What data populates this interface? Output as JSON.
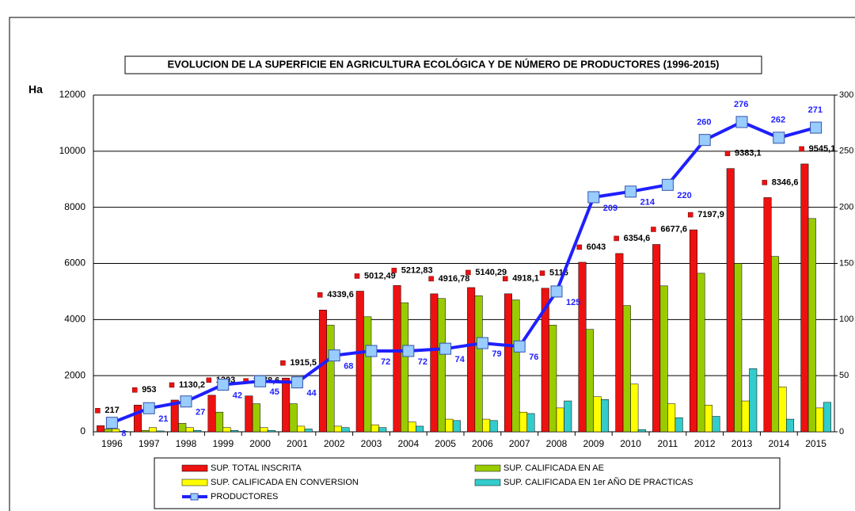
{
  "chart_data": {
    "type": "bar",
    "title": "EVOLUCION DE LA SUPERFICIE EN AGRICULTURA ECOLÓGICA Y DE NÚMERO DE PRODUCTORES  (1996-2015)",
    "ylabel": "Ha",
    "categories": [
      "1996",
      "1997",
      "1998",
      "1999",
      "2000",
      "2001",
      "2002",
      "2003",
      "2004",
      "2005",
      "2006",
      "2007",
      "2008",
      "2009",
      "2010",
      "2011",
      "2012",
      "2013",
      "2014",
      "2015"
    ],
    "series": [
      {
        "name": "SUP. TOTAL INSCRITA",
        "color": "#ee1111",
        "values": [
          217,
          953,
          1130.2,
          1303,
          1278.6,
          1915.5,
          4339.6,
          5012.49,
          5212.83,
          4916.78,
          5140.29,
          4918.1,
          5116,
          6043,
          6354.6,
          6677.6,
          7197.9,
          9383.1,
          8346.6,
          9545.1
        ],
        "value_labels": [
          "217",
          "953",
          "1130,2",
          "1303",
          "1278,6",
          "1915,5",
          "4339,6",
          "5012,49",
          "5212,83",
          "4916,78",
          "5140,29",
          "4918,1",
          "5116",
          "6043",
          "6354,6",
          "6677,6",
          "7197,9",
          "9383,1",
          "8346,6",
          "9545,1"
        ]
      },
      {
        "name": "SUP. CALIFICADA EN AE",
        "color": "#99cc00",
        "values": [
          100,
          50,
          300,
          700,
          1000,
          1000,
          3800,
          4100,
          4600,
          4750,
          4850,
          4700,
          3800,
          3650,
          4500,
          5200,
          5650,
          6000,
          6250,
          7600
        ]
      },
      {
        "name": "SUP. CALIFICADA EN CONVERSION",
        "color": "#ffff00",
        "values": [
          100,
          150,
          150,
          150,
          150,
          200,
          200,
          250,
          350,
          450,
          450,
          700,
          850,
          1250,
          1700,
          1000,
          950,
          1100,
          1600,
          850
        ]
      },
      {
        "name": "SUP. CALIFICADA EN 1er AÑO DE PRACTICAS",
        "color": "#33cccc",
        "values": [
          20,
          30,
          50,
          50,
          50,
          100,
          150,
          150,
          200,
          400,
          400,
          650,
          1100,
          1150,
          80,
          500,
          550,
          2250,
          450,
          1050
        ]
      },
      {
        "name": "PRODUCTORES",
        "color": "#1f1fff",
        "type": "line",
        "axis": "y2",
        "values": [
          8,
          21,
          27,
          42,
          45,
          44,
          68,
          72,
          72,
          74,
          79,
          76,
          125,
          209,
          214,
          220,
          260,
          276,
          262,
          271
        ]
      }
    ],
    "ylim": [
      0,
      12000
    ],
    "yticks": [
      0,
      2000,
      4000,
      6000,
      8000,
      10000,
      12000
    ],
    "y2lim": [
      0,
      300
    ],
    "y2ticks": [
      0,
      50,
      100,
      150,
      200,
      250,
      300
    ],
    "grid": true,
    "legend": "bottom"
  }
}
